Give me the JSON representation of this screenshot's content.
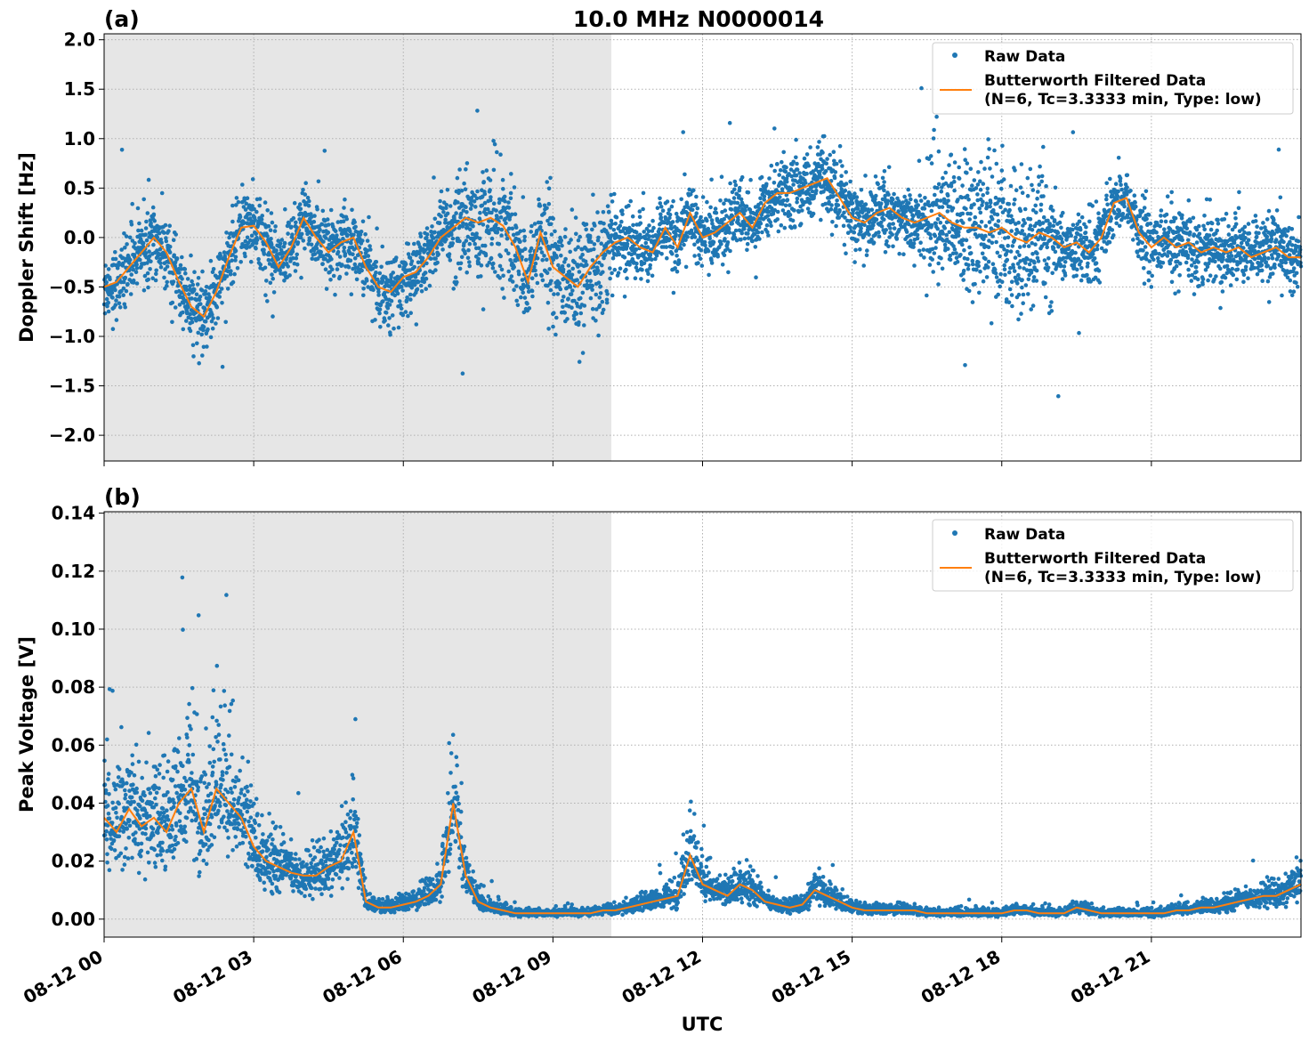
{
  "figure": {
    "title": "10.0 MHz N0000014",
    "xlabel": "UTC",
    "x_tick_labels": [
      "08-12 00",
      "08-12 03",
      "08-12 06",
      "08-12 09",
      "08-12 12",
      "08-12 15",
      "08-12 18",
      "08-12 21"
    ],
    "legend": {
      "raw_label": "Raw Data",
      "filtered_label_line1": "Butterworth Filtered Data",
      "filtered_label_line2": "(N=6, Tc=3.3333 min, Type: low)"
    },
    "colors": {
      "raw": "#1f77b4",
      "filtered": "#ff7f0e",
      "shade": "#e6e6e6",
      "grid": "#b0b0b0"
    }
  },
  "chart_data": [
    {
      "type": "scatter",
      "panel_label": "(a)",
      "ylabel": "Doppler Shift [Hz]",
      "y_tick_labels": [
        "−2.0",
        "−1.5",
        "−1.0",
        "−0.5",
        "0.0",
        "0.5",
        "1.0",
        "1.5",
        "2.0"
      ],
      "y_ticks": [
        -2.0,
        -1.5,
        -1.0,
        -0.5,
        0.0,
        0.5,
        1.0,
        1.5,
        2.0
      ],
      "ylim": [
        -2.26,
        2.06
      ],
      "xlim_hours": [
        0,
        24
      ],
      "shaded_range_hours": [
        0,
        10.17
      ],
      "grid": true,
      "legend_position": "upper right",
      "series": [
        {
          "name": "Butterworth Filtered Data",
          "x_hours": [
            0,
            0.25,
            0.5,
            0.75,
            1.0,
            1.25,
            1.5,
            1.75,
            2.0,
            2.25,
            2.5,
            2.75,
            3.0,
            3.25,
            3.5,
            3.75,
            4.0,
            4.25,
            4.5,
            4.75,
            5.0,
            5.25,
            5.5,
            5.75,
            6.0,
            6.25,
            6.5,
            6.75,
            7.0,
            7.25,
            7.5,
            7.75,
            8.0,
            8.25,
            8.5,
            8.75,
            9.0,
            9.25,
            9.5,
            9.75,
            10.0,
            10.25,
            10.5,
            10.75,
            11.0,
            11.25,
            11.5,
            11.75,
            12.0,
            12.25,
            12.5,
            12.75,
            13.0,
            13.25,
            13.5,
            13.75,
            14.0,
            14.25,
            14.5,
            14.75,
            15.0,
            15.25,
            15.5,
            15.75,
            16.0,
            16.25,
            16.5,
            16.75,
            17.0,
            17.25,
            17.5,
            17.75,
            18.0,
            18.25,
            18.5,
            18.75,
            19.0,
            19.25,
            19.5,
            19.75,
            20.0,
            20.25,
            20.5,
            20.75,
            21.0,
            21.25,
            21.5,
            21.75,
            22.0,
            22.25,
            22.5,
            22.75,
            23.0,
            23.25,
            23.5,
            23.75,
            24.0
          ],
          "values": [
            -0.5,
            -0.45,
            -0.3,
            -0.15,
            0.0,
            -0.15,
            -0.45,
            -0.7,
            -0.8,
            -0.55,
            -0.2,
            0.1,
            0.12,
            -0.05,
            -0.3,
            -0.1,
            0.2,
            0.0,
            -0.15,
            -0.05,
            0.0,
            -0.3,
            -0.5,
            -0.55,
            -0.4,
            -0.35,
            -0.2,
            0.0,
            0.1,
            0.2,
            0.15,
            0.2,
            0.12,
            -0.1,
            -0.45,
            0.05,
            -0.3,
            -0.4,
            -0.5,
            -0.3,
            -0.15,
            -0.05,
            0.0,
            -0.1,
            -0.15,
            0.1,
            -0.1,
            0.25,
            0.0,
            0.05,
            0.15,
            0.25,
            0.1,
            0.35,
            0.45,
            0.45,
            0.5,
            0.55,
            0.6,
            0.4,
            0.2,
            0.15,
            0.25,
            0.3,
            0.2,
            0.15,
            0.2,
            0.25,
            0.15,
            0.1,
            0.1,
            0.05,
            0.1,
            0.0,
            -0.05,
            0.05,
            0.0,
            -0.1,
            -0.05,
            -0.15,
            0.0,
            0.35,
            0.4,
            0.05,
            -0.1,
            0.0,
            -0.1,
            -0.05,
            -0.15,
            -0.1,
            -0.15,
            -0.1,
            -0.2,
            -0.15,
            -0.1,
            -0.2,
            -0.2
          ]
        },
        {
          "name": "Raw Data",
          "spread_hz": 0.5,
          "note_values": "dense scatter around filtered curve"
        }
      ]
    },
    {
      "type": "scatter",
      "panel_label": "(b)",
      "ylabel": "Peak Voltage [V]",
      "y_tick_labels": [
        "0.00",
        "0.02",
        "0.04",
        "0.06",
        "0.08",
        "0.10",
        "0.12",
        "0.14"
      ],
      "y_ticks": [
        0.0,
        0.02,
        0.04,
        0.06,
        0.08,
        0.1,
        0.12,
        0.14
      ],
      "ylim": [
        -0.0062,
        0.1405
      ],
      "xlim_hours": [
        0,
        24
      ],
      "shaded_range_hours": [
        0,
        10.17
      ],
      "grid": true,
      "legend_position": "upper right",
      "series": [
        {
          "name": "Butterworth Filtered Data",
          "x_hours": [
            0,
            0.25,
            0.5,
            0.75,
            1.0,
            1.25,
            1.5,
            1.75,
            2.0,
            2.25,
            2.5,
            2.75,
            3.0,
            3.25,
            3.5,
            3.75,
            4.0,
            4.25,
            4.5,
            4.75,
            5.0,
            5.25,
            5.5,
            5.75,
            6.0,
            6.25,
            6.5,
            6.75,
            7.0,
            7.25,
            7.5,
            7.75,
            8.0,
            8.25,
            8.5,
            8.75,
            9.0,
            9.25,
            9.5,
            9.75,
            10.0,
            10.25,
            10.5,
            10.75,
            11.0,
            11.25,
            11.5,
            11.75,
            12.0,
            12.25,
            12.5,
            12.75,
            13.0,
            13.25,
            13.5,
            13.75,
            14.0,
            14.25,
            14.5,
            14.75,
            15.0,
            15.25,
            15.5,
            15.75,
            16.0,
            16.25,
            16.5,
            16.75,
            17.0,
            17.25,
            17.5,
            17.75,
            18.0,
            18.25,
            18.5,
            18.75,
            19.0,
            19.25,
            19.5,
            19.75,
            20.0,
            20.25,
            20.5,
            20.75,
            21.0,
            21.25,
            21.5,
            21.75,
            22.0,
            22.25,
            22.5,
            22.75,
            23.0,
            23.25,
            23.5,
            23.75,
            24.0
          ],
          "values": [
            0.035,
            0.03,
            0.038,
            0.032,
            0.035,
            0.03,
            0.04,
            0.045,
            0.03,
            0.045,
            0.04,
            0.035,
            0.025,
            0.02,
            0.018,
            0.016,
            0.015,
            0.015,
            0.018,
            0.02,
            0.03,
            0.006,
            0.004,
            0.004,
            0.005,
            0.006,
            0.008,
            0.012,
            0.04,
            0.015,
            0.006,
            0.004,
            0.003,
            0.002,
            0.002,
            0.002,
            0.002,
            0.002,
            0.002,
            0.002,
            0.003,
            0.003,
            0.004,
            0.005,
            0.006,
            0.007,
            0.008,
            0.022,
            0.012,
            0.01,
            0.008,
            0.012,
            0.01,
            0.006,
            0.005,
            0.004,
            0.005,
            0.01,
            0.008,
            0.006,
            0.004,
            0.003,
            0.003,
            0.003,
            0.003,
            0.003,
            0.002,
            0.002,
            0.002,
            0.002,
            0.002,
            0.002,
            0.002,
            0.003,
            0.003,
            0.002,
            0.002,
            0.002,
            0.004,
            0.003,
            0.002,
            0.002,
            0.002,
            0.002,
            0.002,
            0.002,
            0.003,
            0.003,
            0.004,
            0.004,
            0.005,
            0.006,
            0.007,
            0.008,
            0.008,
            0.01,
            0.012
          ]
        },
        {
          "name": "Raw Data",
          "note_values": "dense scatter around filtered curve"
        }
      ]
    }
  ]
}
